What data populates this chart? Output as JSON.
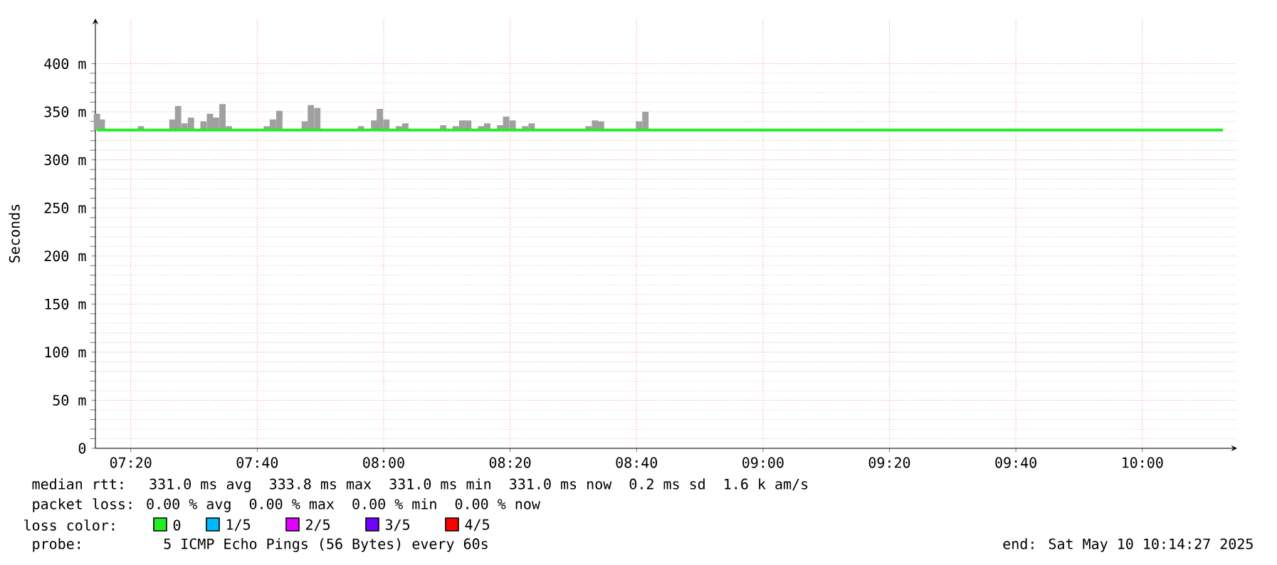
{
  "chart_data": {
    "type": "line",
    "ylabel": "Seconds",
    "legend_title": "loss color:",
    "legend": "bottom",
    "grid": true,
    "xlim": [
      7.24,
      10.25
    ],
    "ylim": [
      0,
      447
    ],
    "xticks": [
      {
        "value": 7.3333,
        "label": "07:20"
      },
      {
        "value": 7.6667,
        "label": "07:40"
      },
      {
        "value": 8,
        "label": "08:00"
      },
      {
        "value": 8.3333,
        "label": "08:20"
      },
      {
        "value": 8.6667,
        "label": "08:40"
      },
      {
        "value": 9,
        "label": "09:00"
      },
      {
        "value": 9.3333,
        "label": "09:20"
      },
      {
        "value": 9.6667,
        "label": "09:40"
      },
      {
        "value": 10,
        "label": "10:00"
      }
    ],
    "yticks": [
      0,
      {
        "value": 50,
        "label": "50 m"
      },
      {
        "value": 100,
        "label": "100 m"
      },
      {
        "value": 150,
        "label": "150 m"
      },
      {
        "value": 200,
        "label": "200 m"
      },
      {
        "value": 250,
        "label": "250 m"
      },
      {
        "value": 300,
        "label": "300 m"
      },
      {
        "value": 350,
        "label": "350 m"
      },
      {
        "value": 400,
        "label": "400 m"
      }
    ],
    "series": [
      {
        "type": "bar",
        "color": "#a0a0a0",
        "x": [
          7.244,
          7.257,
          7.36,
          7.443,
          7.458,
          7.475,
          7.492,
          7.525,
          7.542,
          7.558,
          7.575,
          7.592,
          7.692,
          7.708,
          7.725,
          7.792,
          7.808,
          7.825,
          7.94,
          7.975,
          7.99,
          8.007,
          8.04,
          8.057,
          8.157,
          8.19,
          8.207,
          8.223,
          8.257,
          8.273,
          8.307,
          8.323,
          8.34,
          8.373,
          8.39,
          8.54,
          8.557,
          8.573,
          8.673,
          8.69
        ],
        "values": [
          17,
          11,
          4,
          11,
          25,
          7,
          13,
          9,
          17,
          13,
          27,
          4,
          4,
          11,
          20,
          9,
          26,
          23,
          4,
          10,
          22,
          11,
          4,
          7,
          5,
          4,
          10,
          10,
          4,
          7,
          5,
          14,
          10,
          4,
          7,
          4,
          10,
          9,
          9,
          19
        ],
        "base": [
          331,
          331,
          331,
          331,
          331,
          331,
          331,
          331,
          331,
          331,
          331,
          331,
          331,
          331,
          331,
          331,
          331,
          331,
          331,
          331,
          331,
          331,
          331,
          331,
          331,
          331,
          331,
          331,
          331,
          331,
          331,
          331,
          331,
          331,
          331,
          331,
          331,
          331,
          331,
          331
        ]
      },
      {
        "name": "0",
        "color": "#22ee22",
        "x": [
          7.244,
          10.213
        ],
        "values": [
          331,
          331
        ]
      },
      {
        "name": "1/5",
        "color": "#00b8ff"
      },
      {
        "name": "2/5",
        "color": "#e000ff"
      },
      {
        "name": "3/5",
        "color": "#7000ff"
      },
      {
        "name": "4/5",
        "color": "#ff0000"
      }
    ],
    "annotations": [
      "median rtt:  331.0 ms avg  333.8 ms max  331.0 ms min  331.0 ms now  0.2 ms sd  1.6 k am/s",
      "packet loss: 0.00 % avg  0.00 % max  0.00 % min  0.00 % now",
      "probe:       5 ICMP Echo Pings (56 Bytes) every 60s",
      "end: Sat May 10 10:14:27 2025"
    ]
  }
}
